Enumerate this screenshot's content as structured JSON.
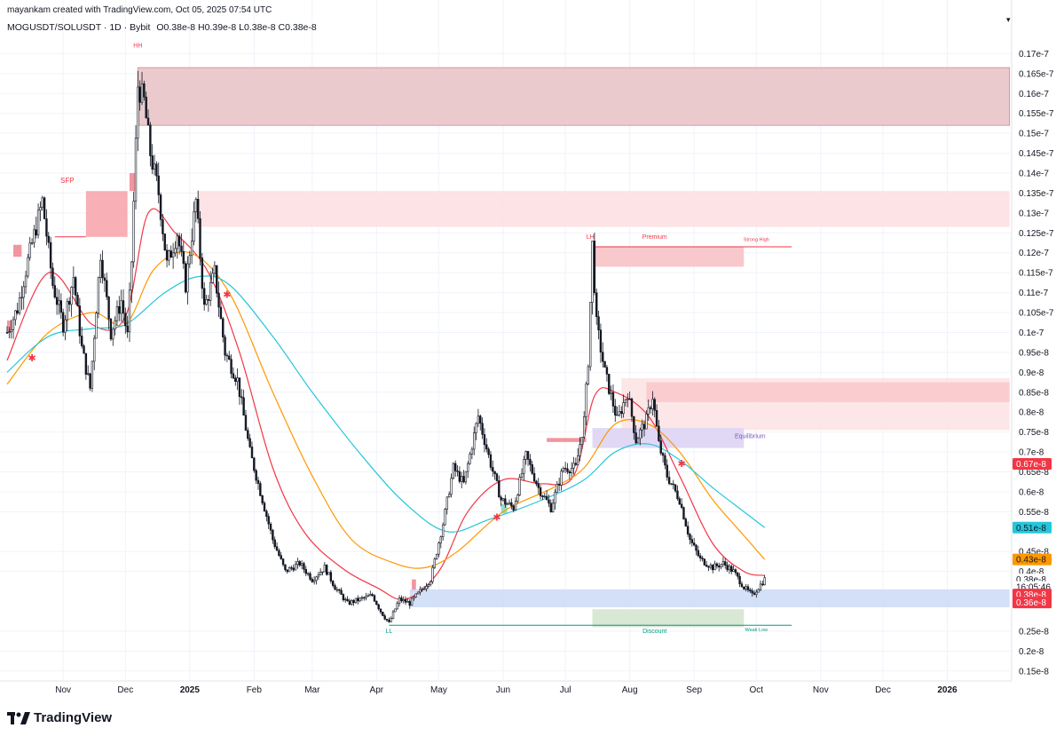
{
  "header": {
    "created_by": "mayankam created with TradingView.com, Oct 05, 2025 07:54 UTC",
    "symbol_line": "MOGUSDT/SOLUSDT · 1D · Bybit",
    "ohlc": "O0.38e-8  H0.39e-8  L0.38e-8  C0.38e-8"
  },
  "branding": {
    "logo_text": "TradingView",
    "logo_icon": "tradingview-logo-icon"
  },
  "colors": {
    "bull": "#131722",
    "bear": "#131722",
    "ema_fast": "#f23645",
    "ema_mid": "#ff9800",
    "ema_slow": "#26c6da",
    "supply": "#f7a6ad",
    "supply_light": "#fbdde0",
    "demand": "#bcd2f7",
    "discount": "#c9dfc4",
    "equilibrium": "#d6cdf0"
  },
  "chart_data": {
    "type": "candlestick",
    "title": "",
    "symbol": "MOGUSDT/SOLUSDT",
    "timeframe": "1D",
    "exchange": "Bybit",
    "y_unit": "e-8",
    "ylim": [
      0.125,
      1.75
    ],
    "y_ticks": [
      {
        "v": 1.7,
        "label": "0.17e-7"
      },
      {
        "v": 1.65,
        "label": "0.165e-7"
      },
      {
        "v": 1.6,
        "label": "0.16e-7"
      },
      {
        "v": 1.55,
        "label": "0.155e-7"
      },
      {
        "v": 1.5,
        "label": "0.15e-7"
      },
      {
        "v": 1.45,
        "label": "0.145e-7"
      },
      {
        "v": 1.4,
        "label": "0.14e-7"
      },
      {
        "v": 1.35,
        "label": "0.135e-7"
      },
      {
        "v": 1.3,
        "label": "0.13e-7"
      },
      {
        "v": 1.25,
        "label": "0.125e-7"
      },
      {
        "v": 1.2,
        "label": "0.12e-7"
      },
      {
        "v": 1.15,
        "label": "0.115e-7"
      },
      {
        "v": 1.1,
        "label": "0.11e-7"
      },
      {
        "v": 1.05,
        "label": "0.105e-7"
      },
      {
        "v": 1.0,
        "label": "0.1e-7"
      },
      {
        "v": 0.95,
        "label": "0.95e-8"
      },
      {
        "v": 0.9,
        "label": "0.9e-8"
      },
      {
        "v": 0.85,
        "label": "0.85e-8"
      },
      {
        "v": 0.8,
        "label": "0.8e-8"
      },
      {
        "v": 0.75,
        "label": "0.75e-8"
      },
      {
        "v": 0.7,
        "label": "0.7e-8"
      },
      {
        "v": 0.65,
        "label": "0.65e-8"
      },
      {
        "v": 0.6,
        "label": "0.6e-8"
      },
      {
        "v": 0.55,
        "label": "0.55e-8"
      },
      {
        "v": 0.45,
        "label": "0.45e-8"
      },
      {
        "v": 0.4,
        "label": "0.4e-8"
      },
      {
        "v": 0.25,
        "label": "0.25e-8"
      },
      {
        "v": 0.2,
        "label": "0.2e-8"
      },
      {
        "v": 0.15,
        "label": "0.15e-8"
      }
    ],
    "x_ticks": [
      {
        "date": "2024-11-01",
        "label": "Nov",
        "bold": false
      },
      {
        "date": "2024-12-01",
        "label": "Dec",
        "bold": false
      },
      {
        "date": "2025-01-01",
        "label": "2025",
        "bold": true
      },
      {
        "date": "2025-02-01",
        "label": "Feb",
        "bold": false
      },
      {
        "date": "2025-03-01",
        "label": "Mar",
        "bold": false
      },
      {
        "date": "2025-04-01",
        "label": "Apr",
        "bold": false
      },
      {
        "date": "2025-05-01",
        "label": "May",
        "bold": false
      },
      {
        "date": "2025-06-01",
        "label": "Jun",
        "bold": false
      },
      {
        "date": "2025-07-01",
        "label": "Jul",
        "bold": false
      },
      {
        "date": "2025-08-01",
        "label": "Aug",
        "bold": false
      },
      {
        "date": "2025-09-01",
        "label": "Sep",
        "bold": false
      },
      {
        "date": "2025-10-01",
        "label": "Oct",
        "bold": false
      },
      {
        "date": "2025-11-01",
        "label": "Nov",
        "bold": false
      },
      {
        "date": "2025-12-01",
        "label": "Dec",
        "bold": false
      },
      {
        "date": "2026-01-01",
        "label": "2026",
        "bold": true
      }
    ],
    "xlim": [
      "2024-10-05",
      "2026-02-01"
    ],
    "price_path": [
      [
        "2024-10-05",
        1.0
      ],
      [
        "2024-10-10",
        1.06
      ],
      [
        "2024-10-15",
        1.18
      ],
      [
        "2024-10-22",
        1.33
      ],
      [
        "2024-10-27",
        1.12
      ],
      [
        "2024-11-01",
        1.02
      ],
      [
        "2024-11-06",
        1.14
      ],
      [
        "2024-11-10",
        0.96
      ],
      [
        "2024-11-14",
        0.86
      ],
      [
        "2024-11-19",
        1.2
      ],
      [
        "2024-11-24",
        1.0
      ],
      [
        "2024-11-29",
        1.08
      ],
      [
        "2024-12-02",
        0.99
      ],
      [
        "2024-12-04",
        1.18
      ],
      [
        "2024-12-07",
        1.62
      ],
      [
        "2024-12-10",
        1.58
      ],
      [
        "2024-12-13",
        1.45
      ],
      [
        "2024-12-17",
        1.35
      ],
      [
        "2024-12-21",
        1.17
      ],
      [
        "2024-12-26",
        1.25
      ],
      [
        "2024-12-30",
        1.12
      ],
      [
        "2025-01-04",
        1.33
      ],
      [
        "2025-01-08",
        1.06
      ],
      [
        "2025-01-13",
        1.15
      ],
      [
        "2025-01-18",
        0.95
      ],
      [
        "2025-01-24",
        0.88
      ],
      [
        "2025-01-30",
        0.7
      ],
      [
        "2025-02-04",
        0.6
      ],
      [
        "2025-02-10",
        0.48
      ],
      [
        "2025-02-16",
        0.4
      ],
      [
        "2025-02-23",
        0.42
      ],
      [
        "2025-03-01",
        0.38
      ],
      [
        "2025-03-07",
        0.41
      ],
      [
        "2025-03-12",
        0.36
      ],
      [
        "2025-03-18",
        0.32
      ],
      [
        "2025-03-24",
        0.33
      ],
      [
        "2025-03-30",
        0.34
      ],
      [
        "2025-04-03",
        0.3
      ],
      [
        "2025-04-07",
        0.27
      ],
      [
        "2025-04-12",
        0.33
      ],
      [
        "2025-04-17",
        0.32
      ],
      [
        "2025-04-22",
        0.35
      ],
      [
        "2025-04-27",
        0.38
      ],
      [
        "2025-05-03",
        0.52
      ],
      [
        "2025-05-08",
        0.66
      ],
      [
        "2025-05-13",
        0.62
      ],
      [
        "2025-05-20",
        0.79
      ],
      [
        "2025-05-26",
        0.67
      ],
      [
        "2025-05-31",
        0.58
      ],
      [
        "2025-06-06",
        0.56
      ],
      [
        "2025-06-12",
        0.69
      ],
      [
        "2025-06-18",
        0.61
      ],
      [
        "2025-06-24",
        0.56
      ],
      [
        "2025-06-30",
        0.66
      ],
      [
        "2025-07-06",
        0.66
      ],
      [
        "2025-07-10",
        0.78
      ],
      [
        "2025-07-12",
        0.93
      ],
      [
        "2025-07-14",
        1.22
      ],
      [
        "2025-07-16",
        1.02
      ],
      [
        "2025-07-20",
        0.9
      ],
      [
        "2025-07-26",
        0.78
      ],
      [
        "2025-07-31",
        0.85
      ],
      [
        "2025-08-04",
        0.73
      ],
      [
        "2025-08-09",
        0.78
      ],
      [
        "2025-08-12",
        0.84
      ],
      [
        "2025-08-15",
        0.72
      ],
      [
        "2025-08-19",
        0.64
      ],
      [
        "2025-08-25",
        0.58
      ],
      [
        "2025-08-30",
        0.48
      ],
      [
        "2025-09-04",
        0.43
      ],
      [
        "2025-09-10",
        0.41
      ],
      [
        "2025-09-15",
        0.42
      ],
      [
        "2025-09-20",
        0.4
      ],
      [
        "2025-09-25",
        0.36
      ],
      [
        "2025-09-29",
        0.34
      ],
      [
        "2025-10-02",
        0.36
      ],
      [
        "2025-10-05",
        0.38
      ]
    ],
    "series": [
      {
        "key": "ema_fast",
        "color": "#f23645",
        "points": [
          [
            "2024-10-05",
            0.93
          ],
          [
            "2024-10-25",
            1.15
          ],
          [
            "2024-11-15",
            1.02
          ],
          [
            "2024-12-01",
            1.04
          ],
          [
            "2024-12-12",
            1.3
          ],
          [
            "2024-12-25",
            1.25
          ],
          [
            "2025-01-10",
            1.15
          ],
          [
            "2025-01-25",
            0.95
          ],
          [
            "2025-02-10",
            0.66
          ],
          [
            "2025-02-25",
            0.5
          ],
          [
            "2025-03-15",
            0.41
          ],
          [
            "2025-04-01",
            0.36
          ],
          [
            "2025-04-15",
            0.33
          ],
          [
            "2025-05-01",
            0.4
          ],
          [
            "2025-05-15",
            0.55
          ],
          [
            "2025-06-01",
            0.63
          ],
          [
            "2025-06-20",
            0.62
          ],
          [
            "2025-07-05",
            0.64
          ],
          [
            "2025-07-15",
            0.84
          ],
          [
            "2025-07-25",
            0.85
          ],
          [
            "2025-08-10",
            0.79
          ],
          [
            "2025-08-25",
            0.64
          ],
          [
            "2025-09-10",
            0.47
          ],
          [
            "2025-09-25",
            0.4
          ],
          [
            "2025-10-05",
            0.39
          ]
        ]
      },
      {
        "key": "ema_mid",
        "color": "#ff9800",
        "points": [
          [
            "2024-10-05",
            0.87
          ],
          [
            "2024-10-25",
            1.0
          ],
          [
            "2024-11-15",
            1.05
          ],
          [
            "2024-12-01",
            1.02
          ],
          [
            "2024-12-15",
            1.16
          ],
          [
            "2025-01-01",
            1.2
          ],
          [
            "2025-01-20",
            1.1
          ],
          [
            "2025-02-10",
            0.85
          ],
          [
            "2025-03-01",
            0.64
          ],
          [
            "2025-03-20",
            0.48
          ],
          [
            "2025-04-10",
            0.42
          ],
          [
            "2025-04-25",
            0.41
          ],
          [
            "2025-05-10",
            0.45
          ],
          [
            "2025-06-01",
            0.55
          ],
          [
            "2025-06-25",
            0.61
          ],
          [
            "2025-07-10",
            0.66
          ],
          [
            "2025-07-25",
            0.77
          ],
          [
            "2025-08-10",
            0.77
          ],
          [
            "2025-08-25",
            0.7
          ],
          [
            "2025-09-10",
            0.58
          ],
          [
            "2025-09-25",
            0.49
          ],
          [
            "2025-10-05",
            0.43
          ]
        ]
      },
      {
        "key": "ema_slow",
        "color": "#26c6da",
        "points": [
          [
            "2024-10-05",
            0.9
          ],
          [
            "2024-10-25",
            0.99
          ],
          [
            "2024-11-15",
            1.01
          ],
          [
            "2024-12-01",
            1.02
          ],
          [
            "2024-12-20",
            1.1
          ],
          [
            "2025-01-05",
            1.14
          ],
          [
            "2025-01-20",
            1.12
          ],
          [
            "2025-02-10",
            0.99
          ],
          [
            "2025-03-01",
            0.85
          ],
          [
            "2025-03-25",
            0.69
          ],
          [
            "2025-04-15",
            0.57
          ],
          [
            "2025-05-05",
            0.5
          ],
          [
            "2025-05-25",
            0.53
          ],
          [
            "2025-06-20",
            0.58
          ],
          [
            "2025-07-10",
            0.63
          ],
          [
            "2025-07-25",
            0.7
          ],
          [
            "2025-08-10",
            0.72
          ],
          [
            "2025-08-25",
            0.68
          ],
          [
            "2025-09-10",
            0.61
          ],
          [
            "2025-09-25",
            0.55
          ],
          [
            "2025-10-05",
            0.51
          ]
        ]
      }
    ],
    "zones": [
      {
        "kind": "supply_top",
        "from": "2024-12-07",
        "to": "2026-01-31",
        "y1": 1.52,
        "y2": 1.665
      },
      {
        "kind": "supply_light",
        "from": "2025-01-05",
        "to": "2026-01-31",
        "y1": 1.265,
        "y2": 1.355
      },
      {
        "kind": "sfp_box",
        "from": "2024-11-12",
        "to": "2024-12-02",
        "y1": 1.24,
        "y2": 1.355
      },
      {
        "kind": "red_small",
        "from": "2024-12-03",
        "to": "2024-12-06",
        "y1": 1.355,
        "y2": 1.4
      },
      {
        "kind": "red_small",
        "from": "2024-10-08",
        "to": "2024-10-12",
        "y1": 1.19,
        "y2": 1.22
      },
      {
        "kind": "red_small",
        "from": "2024-10-05",
        "to": "2024-10-07",
        "y1": 1.0,
        "y2": 1.03
      },
      {
        "kind": "premium",
        "from": "2025-07-14",
        "to": "2025-09-25",
        "y1": 1.165,
        "y2": 1.215
      },
      {
        "kind": "supply_mid_light",
        "from": "2025-07-28",
        "to": "2026-01-31",
        "y1": 0.755,
        "y2": 0.885
      },
      {
        "kind": "supply_mid",
        "from": "2025-08-09",
        "to": "2026-01-31",
        "y1": 0.825,
        "y2": 0.875
      },
      {
        "kind": "equilibrium",
        "from": "2025-07-14",
        "to": "2025-09-25",
        "y1": 0.71,
        "y2": 0.76
      },
      {
        "kind": "red_small",
        "from": "2025-06-22",
        "to": "2025-07-11",
        "y1": 0.725,
        "y2": 0.735
      },
      {
        "kind": "red_small",
        "from": "2025-04-18",
        "to": "2025-04-20",
        "y1": 0.35,
        "y2": 0.38
      },
      {
        "kind": "demand",
        "from": "2025-04-17",
        "to": "2026-01-31",
        "y1": 0.31,
        "y2": 0.355
      },
      {
        "kind": "discount",
        "from": "2025-07-14",
        "to": "2025-09-25",
        "y1": 0.26,
        "y2": 0.305
      },
      {
        "kind": "green_small",
        "from": "2025-05-31",
        "to": "2025-06-03",
        "y1": 0.545,
        "y2": 0.57
      }
    ],
    "lines": [
      {
        "kind": "strong_high",
        "from": "2025-07-14",
        "to": "2025-10-18",
        "y": 1.215,
        "color": "#f23645"
      },
      {
        "kind": "weak_low",
        "from": "2025-04-07",
        "to": "2025-10-18",
        "y": 0.265,
        "color": "#089981"
      },
      {
        "kind": "sfp_line",
        "from": "2024-10-28",
        "to": "2024-11-12",
        "y": 1.24,
        "color": "#f23645"
      }
    ],
    "markers": [
      {
        "date": "2024-10-17",
        "y": 0.935
      },
      {
        "date": "2025-01-19",
        "y": 1.095
      },
      {
        "date": "2025-05-29",
        "y": 0.535
      },
      {
        "date": "2025-08-26",
        "y": 0.67
      }
    ],
    "annotations": [
      {
        "text": "HH",
        "date": "2024-12-07",
        "y": 1.715,
        "color": "#f23645",
        "size": 7
      },
      {
        "text": "SFP",
        "date": "2024-11-03",
        "y": 1.375,
        "color": "#f23645",
        "size": 8
      },
      {
        "text": "LH",
        "date": "2025-07-13",
        "y": 1.235,
        "color": "#f23645",
        "size": 7
      },
      {
        "text": "Premium",
        "date": "2025-08-13",
        "y": 1.235,
        "color": "#f23645",
        "size": 7
      },
      {
        "text": "Strong High",
        "date": "2025-10-01",
        "y": 1.23,
        "color": "#f23645",
        "size": 5.5
      },
      {
        "text": "Equilibrium",
        "date": "2025-09-28",
        "y": 0.735,
        "color": "#7e57c2",
        "size": 7
      },
      {
        "text": "LL",
        "date": "2025-04-07",
        "y": 0.245,
        "color": "#089981",
        "size": 7
      },
      {
        "text": "Discount",
        "date": "2025-08-13",
        "y": 0.245,
        "color": "#089981",
        "size": 7
      },
      {
        "text": "Weak Low",
        "date": "2025-10-01",
        "y": 0.25,
        "color": "#089981",
        "size": 5.5
      }
    ],
    "price_labels": [
      {
        "text": "0.67e-8",
        "y": 0.67,
        "bg": "#f23645",
        "fg": "#ffffff"
      },
      {
        "text": "0.51e-8",
        "y": 0.51,
        "bg": "#26c6da",
        "fg": "#131722"
      },
      {
        "text": "0.43e-8",
        "y": 0.43,
        "bg": "#ff9800",
        "fg": "#131722"
      },
      {
        "text": "0.38e-8",
        "y": 0.38,
        "bg": "#ffffff",
        "fg": "#131722"
      },
      {
        "text": "16:05:46",
        "y": 0.361,
        "bg": "#ffffff",
        "fg": "#131722"
      },
      {
        "text": "0.38e-8",
        "y": 0.342,
        "bg": "#f23645",
        "fg": "#ffffff"
      },
      {
        "text": "0.36e-8",
        "y": 0.322,
        "bg": "#f23645",
        "fg": "#ffffff"
      }
    ],
    "grid": true,
    "legend": "none"
  }
}
